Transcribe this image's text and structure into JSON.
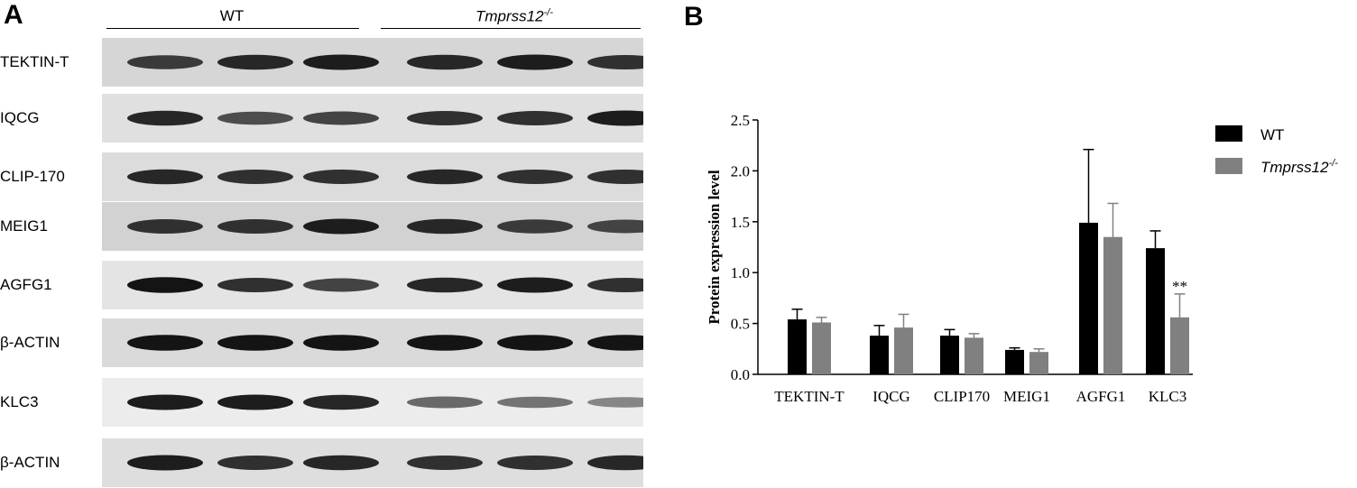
{
  "panel_a": {
    "letter": "A",
    "groups": [
      {
        "label": "WT"
      },
      {
        "label": "Tmprss12",
        "sup": "-/-"
      }
    ],
    "rows": [
      {
        "label": "TEKTIN-T",
        "band_intensity": [
          0.75,
          0.85,
          0.9,
          0.85,
          0.9,
          0.8
        ],
        "bg": "#d6d6d6"
      },
      {
        "label": "IQCG",
        "band_intensity": [
          0.85,
          0.65,
          0.7,
          0.8,
          0.8,
          0.9
        ],
        "bg": "#e0e0e0"
      },
      {
        "label": "CLIP-170",
        "band_intensity": [
          0.85,
          0.8,
          0.8,
          0.85,
          0.8,
          0.8
        ],
        "bg": "#dcdcdc"
      },
      {
        "label": "MEIG1",
        "band_intensity": [
          0.8,
          0.8,
          0.9,
          0.85,
          0.75,
          0.7
        ],
        "bg": "#d2d2d2"
      },
      {
        "label": "AGFG1",
        "band_intensity": [
          0.95,
          0.8,
          0.7,
          0.85,
          0.9,
          0.8
        ],
        "bg": "#e4e4e4"
      },
      {
        "label": "β-ACTIN",
        "band_intensity": [
          0.95,
          0.95,
          0.95,
          0.95,
          0.95,
          0.95
        ],
        "bg": "#dadada"
      },
      {
        "label": "KLC3",
        "band_intensity": [
          0.9,
          0.9,
          0.85,
          0.5,
          0.45,
          0.35
        ],
        "bg": "#ececec"
      },
      {
        "label": "β-ACTIN",
        "band_intensity": [
          0.9,
          0.8,
          0.85,
          0.8,
          0.8,
          0.85
        ],
        "bg": "#dedede"
      }
    ]
  },
  "chart_data": {
    "panel_letter": "B",
    "type": "bar",
    "categories": [
      "TEKTIN-T",
      "IQCG",
      "CLIP170",
      "MEIG1",
      "AGFG1",
      "KLC3"
    ],
    "series": [
      {
        "name": "WT",
        "color": "#000000",
        "values": [
          0.54,
          0.38,
          0.38,
          0.24,
          1.49,
          1.24
        ],
        "errors": [
          0.1,
          0.1,
          0.06,
          0.02,
          0.72,
          0.17
        ]
      },
      {
        "name": "Tmprss12",
        "name_sup": "-/-",
        "color": "#808080",
        "values": [
          0.51,
          0.46,
          0.36,
          0.22,
          1.35,
          0.56
        ],
        "errors": [
          0.05,
          0.13,
          0.04,
          0.03,
          0.33,
          0.23
        ]
      }
    ],
    "ylabel": "Protein expression level",
    "ylim": [
      0,
      2.5
    ],
    "yticks": [
      "0.0",
      "0.5",
      "1.0",
      "1.5",
      "2.0",
      "2.5"
    ],
    "ytick_values": [
      0,
      0.5,
      1.0,
      1.5,
      2.0,
      2.5
    ],
    "annotation": {
      "text": "**",
      "category": "KLC3",
      "series": 1
    },
    "legend_position": "top-right",
    "grid": false
  }
}
